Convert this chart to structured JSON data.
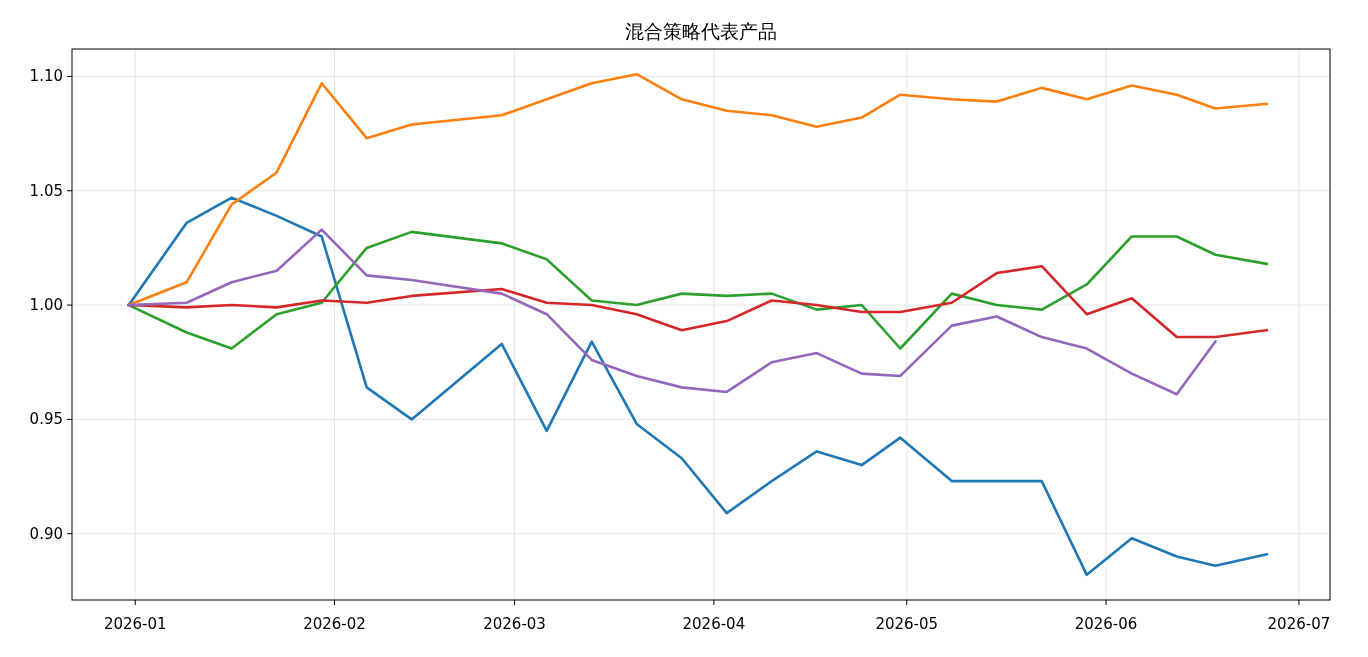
{
  "chart_data": {
    "type": "line",
    "title": "混合策略代表产品",
    "x": [
      "2025-12-31",
      "2026-01-09",
      "2026-01-16",
      "2026-01-23",
      "2026-01-30",
      "2026-02-06",
      "2026-02-13",
      "2026-02-27",
      "2026-03-06",
      "2026-03-13",
      "2026-03-20",
      "2026-03-27",
      "2026-04-03",
      "2026-04-10",
      "2026-04-17",
      "2026-04-24",
      "2026-04-30",
      "2026-05-08",
      "2026-05-15",
      "2026-05-22",
      "2026-05-29",
      "2026-06-05",
      "2026-06-12",
      "2026-06-18",
      "2026-06-26"
    ],
    "series": [
      {
        "color": "#1f77b4",
        "values": [
          1.0,
          1.036,
          1.047,
          1.039,
          1.03,
          0.964,
          0.95,
          0.983,
          0.945,
          0.984,
          0.948,
          0.933,
          0.909,
          0.923,
          0.936,
          0.93,
          0.942,
          0.923,
          0.923,
          0.923,
          0.882,
          0.898,
          0.89,
          0.886,
          0.891
        ]
      },
      {
        "color": "#ff7f0e",
        "values": [
          1.0,
          1.01,
          1.044,
          1.058,
          1.097,
          1.073,
          1.079,
          1.083,
          1.09,
          1.097,
          1.101,
          1.09,
          1.085,
          1.083,
          1.078,
          1.082,
          1.092,
          1.09,
          1.089,
          1.095,
          1.09,
          1.096,
          1.092,
          1.086,
          1.088
        ]
      },
      {
        "color": "#2ca02c",
        "values": [
          1.0,
          0.988,
          0.981,
          0.996,
          1.001,
          1.025,
          1.032,
          1.027,
          1.02,
          1.002,
          1.0,
          1.005,
          1.004,
          1.005,
          0.998,
          1.0,
          0.981,
          1.005,
          1.0,
          0.998,
          1.009,
          1.03,
          1.03,
          1.022,
          1.018
        ]
      },
      {
        "color": "#d62728",
        "values": [
          1.0,
          0.999,
          1.0,
          0.999,
          1.002,
          1.001,
          1.004,
          1.007,
          1.001,
          1.0,
          0.996,
          0.989,
          0.993,
          1.002,
          1.0,
          0.997,
          0.997,
          1.001,
          1.014,
          1.017,
          0.996,
          1.003,
          0.986,
          0.986,
          0.989
        ]
      },
      {
        "color": "#9467bd",
        "values": [
          1.0,
          1.001,
          1.01,
          1.015,
          1.033,
          1.013,
          1.011,
          1.005,
          0.996,
          0.976,
          0.969,
          0.964,
          0.962,
          0.975,
          0.979,
          0.97,
          0.969,
          0.991,
          0.995,
          0.986,
          0.981,
          0.97,
          0.961,
          0.984,
          null
        ]
      }
    ],
    "xlim": [
      "2025-12-22T04:00",
      "2026-07-05T20:00"
    ],
    "xticks": [
      {
        "value": "2026-01-01",
        "label": "2026-01"
      },
      {
        "value": "2026-02-01",
        "label": "2026-02"
      },
      {
        "value": "2026-03-01",
        "label": "2026-03"
      },
      {
        "value": "2026-04-01",
        "label": "2026-04"
      },
      {
        "value": "2026-05-01",
        "label": "2026-05"
      },
      {
        "value": "2026-06-01",
        "label": "2026-06"
      },
      {
        "value": "2026-07-01",
        "label": "2026-07"
      }
    ],
    "ylim": [
      0.871,
      1.112
    ],
    "yticks": [
      {
        "value": 0.9,
        "label": "0.90"
      },
      0.95,
      {
        "value": 1,
        "label": "1.00"
      },
      1.05,
      {
        "value": 1.1,
        "label": "1.10"
      }
    ],
    "grid": true,
    "line_style": "solid"
  }
}
